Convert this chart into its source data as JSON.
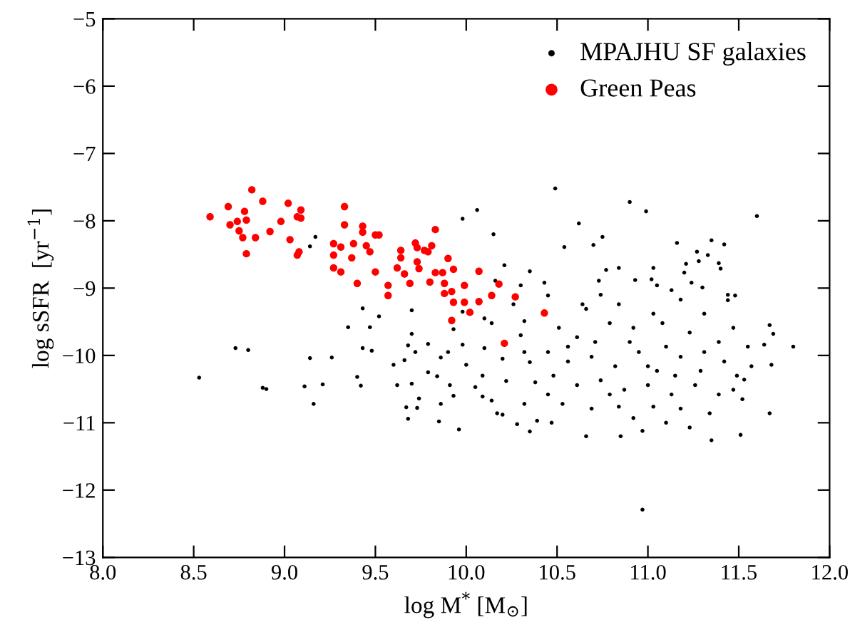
{
  "chart_data": {
    "type": "scatter",
    "xlabel": "log M$^{*}$ [M$_{⊙}$]",
    "ylabel": "log sSFR  [yr$^{−1}$]",
    "xlim": [
      8.0,
      12.0
    ],
    "ylim": [
      -13,
      -5
    ],
    "xticks": [
      {
        "value": 8,
        "label": "8.0"
      },
      8.5,
      {
        "value": 9,
        "label": "9.0"
      },
      9.5,
      {
        "value": 10,
        "label": "10.0"
      },
      10.5,
      {
        "value": 11,
        "label": "11.0"
      },
      11.5,
      {
        "value": 12,
        "label": "12.0"
      }
    ],
    "yticks": [
      -13,
      -12,
      -11,
      -10,
      -9,
      -8,
      -7,
      -6,
      -5
    ],
    "grid": false,
    "legend": "top right",
    "series": [
      {
        "name": "MPAJHU SF galaxies",
        "color": "#000000",
        "x": [
          10.49,
          10.9,
          10.99,
          11.6,
          10.62,
          10.54,
          10.7,
          10.75,
          11.16,
          11.35,
          11.42,
          11.27,
          11.33,
          11.28,
          11.39,
          11.4,
          11.21,
          11.2,
          10.84,
          10.77,
          11.03,
          11.02,
          10.93,
          10.73,
          11.3,
          11.24,
          11.48,
          11.44,
          11.67,
          11.69,
          11.8,
          11.67,
          11.51,
          11.35,
          10.66,
          10.85,
          10.97,
          10.97,
          11.53,
          11.68,
          11.64,
          8.8,
          8.9,
          9.11,
          9.21,
          9.16,
          9.14,
          9.26,
          9.35,
          9.43,
          9.47,
          9.52,
          9.43,
          9.48,
          9.4,
          9.42,
          9.6,
          9.62,
          9.68,
          9.7,
          9.7,
          9.72,
          9.66,
          9.67,
          9.73,
          9.74,
          9.68,
          9.7,
          9.79,
          9.79,
          9.86,
          9.85,
          9.96,
          9.84,
          9.86,
          9.91,
          9.93,
          9.9,
          9.93,
          9.98,
          10.0,
          10.05,
          9.98,
          10.09,
          10.09,
          10.1,
          10.14,
          10.17,
          10.2,
          10.2,
          10.28,
          10.35,
          10.22,
          10.32,
          10.39,
          10.47,
          10.21,
          10.35,
          10.16,
          10.3,
          10.1,
          10.14,
          10.26,
          10.32,
          8.53,
          8.73,
          8.88,
          9.98,
          10.06,
          10.15,
          9.17,
          9.14,
          10.43,
          10.45,
          10.66,
          10.84,
          11.03,
          11.18,
          11.31,
          11.47,
          10.51,
          10.61,
          10.79,
          10.92,
          11.08,
          11.23,
          11.39,
          11.55,
          10.45,
          10.56,
          10.69,
          10.82,
          10.95,
          11.05,
          11.18,
          11.29,
          11.42,
          11.49,
          10.48,
          10.61,
          10.74,
          10.87,
          11.0,
          11.13,
          11.26,
          11.39,
          11.47,
          10.53,
          10.69,
          10.84,
          11.03,
          11.18,
          11.34,
          10.45,
          10.56,
          10.9,
          11.1,
          11.31,
          10.71,
          11.0,
          11.15,
          10.79,
          10.92,
          11.1,
          11.23,
          11.52,
          11.57,
          11.44,
          11.05,
          11.13,
          10.64,
          10.74,
          10.3,
          10.35,
          10.38,
          10.32
        ],
        "values": [
          -7.52,
          -7.72,
          -7.86,
          -7.93,
          -8.04,
          -8.39,
          -8.36,
          -8.24,
          -8.33,
          -8.29,
          -8.35,
          -8.46,
          -8.51,
          -8.6,
          -8.63,
          -8.71,
          -8.64,
          -8.77,
          -8.7,
          -8.73,
          -8.7,
          -8.87,
          -8.88,
          -8.89,
          -8.99,
          -8.92,
          -9.11,
          -9.18,
          -9.55,
          -9.68,
          -9.87,
          -10.86,
          -11.18,
          -11.26,
          -11.2,
          -11.2,
          -11.12,
          -12.29,
          -10.36,
          -10.14,
          -9.84,
          -9.92,
          -10.5,
          -10.46,
          -10.43,
          -10.72,
          -10.04,
          -10.03,
          -9.58,
          -9.3,
          -9.58,
          -9.42,
          -9.89,
          -9.93,
          -10.32,
          -10.45,
          -10.14,
          -10.44,
          -9.85,
          -9.68,
          -9.33,
          -9.95,
          -10.07,
          -10.77,
          -10.78,
          -10.64,
          -10.94,
          -10.42,
          -10.25,
          -9.83,
          -10.72,
          -10.98,
          -11.1,
          -10.31,
          -10.03,
          -10.44,
          -10.6,
          -9.95,
          -9.61,
          -9.84,
          -10.14,
          -10.47,
          -9.35,
          -10.3,
          -10.61,
          -9.89,
          -10.67,
          -10.86,
          -10.05,
          -10.88,
          -11.02,
          -11.13,
          -10.38,
          -10.72,
          -10.97,
          -11.0,
          -8.66,
          -8.75,
          -8.89,
          -8.96,
          -9.45,
          -9.52,
          -9.24,
          -9.49,
          -10.33,
          -9.89,
          -10.48,
          -7.97,
          -7.84,
          -8.2,
          -8.24,
          -8.38,
          -8.92,
          -9.11,
          -9.31,
          -9.24,
          -9.38,
          -9.17,
          -9.38,
          -9.59,
          -9.59,
          -9.73,
          -9.52,
          -9.59,
          -9.52,
          -9.66,
          -9.8,
          -9.87,
          -9.95,
          -10.09,
          -10.02,
          -10.16,
          -9.95,
          -10.23,
          -10.02,
          -10.23,
          -10.09,
          -10.3,
          -10.3,
          -10.44,
          -10.37,
          -10.51,
          -10.44,
          -10.58,
          -10.44,
          -10.58,
          -10.51,
          -10.72,
          -10.79,
          -10.76,
          -10.76,
          -10.79,
          -10.86,
          -10.58,
          -9.87,
          -9.8,
          -9.87,
          -9.95,
          -9.8,
          -10.16,
          -10.3,
          -10.58,
          -10.93,
          -11.0,
          -11.07,
          -10.65,
          -10.16,
          -9.1,
          -8.96,
          -9.03,
          -9.24,
          -9.1,
          -9.7,
          -10.1,
          -10.4,
          -9.95
        ]
      },
      {
        "name": "Green Peas",
        "color": "#ff0000",
        "x": [
          8.59,
          8.69,
          8.82,
          8.88,
          8.78,
          8.74,
          8.79,
          8.7,
          8.75,
          8.77,
          8.84,
          8.79,
          8.92,
          8.98,
          9.02,
          9.09,
          9.07,
          9.09,
          9.03,
          9.08,
          9.07,
          9.33,
          9.33,
          9.43,
          9.43,
          9.5,
          9.52,
          9.27,
          9.31,
          9.38,
          9.45,
          9.47,
          9.27,
          9.37,
          9.27,
          9.31,
          9.4,
          9.5,
          9.57,
          9.57,
          9.64,
          9.64,
          9.62,
          9.66,
          9.69,
          9.72,
          9.73,
          9.73,
          9.74,
          9.77,
          9.79,
          9.81,
          9.83,
          9.8,
          9.83,
          9.87,
          9.88,
          9.9,
          9.93,
          9.88,
          9.92,
          9.93,
          9.99,
          9.99,
          10.02,
          9.92,
          10.07,
          10.07,
          10.14,
          10.18,
          10.27,
          10.21,
          10.43
        ],
        "values": [
          -7.94,
          -7.79,
          -7.54,
          -7.71,
          -7.86,
          -8.01,
          -7.99,
          -8.06,
          -8.15,
          -8.25,
          -8.25,
          -8.49,
          -8.16,
          -8.01,
          -7.74,
          -7.84,
          -7.94,
          -7.96,
          -8.28,
          -8.46,
          -8.51,
          -7.79,
          -8.06,
          -8.08,
          -8.17,
          -8.21,
          -8.21,
          -8.34,
          -8.39,
          -8.34,
          -8.37,
          -8.46,
          -8.51,
          -8.55,
          -8.7,
          -8.76,
          -8.93,
          -8.76,
          -8.96,
          -9.11,
          -8.44,
          -8.55,
          -8.7,
          -8.79,
          -8.93,
          -8.33,
          -8.4,
          -8.61,
          -8.71,
          -8.44,
          -8.46,
          -8.37,
          -8.13,
          -8.91,
          -8.77,
          -8.77,
          -8.93,
          -8.56,
          -8.72,
          -9.08,
          -9.05,
          -9.21,
          -8.96,
          -9.21,
          -9.36,
          -9.48,
          -8.75,
          -9.2,
          -9.11,
          -8.94,
          -9.13,
          -9.82,
          -9.37
        ]
      }
    ]
  }
}
